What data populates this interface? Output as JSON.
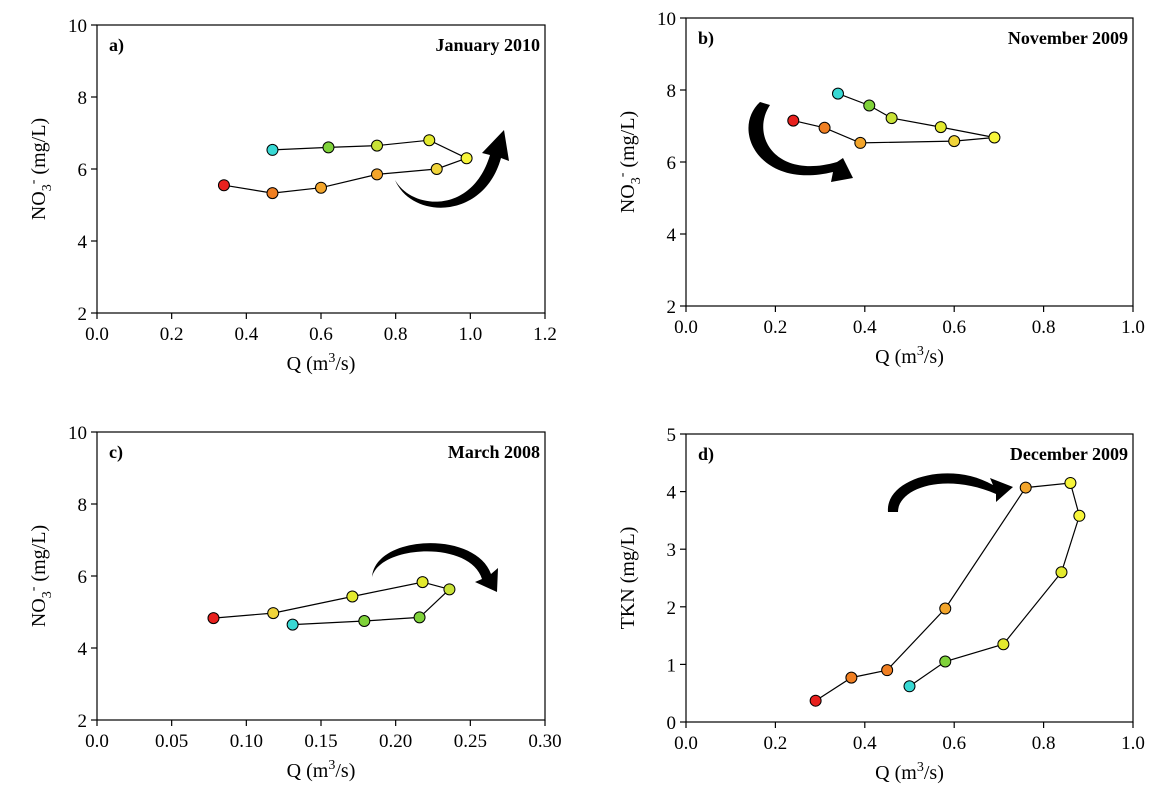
{
  "chart_data": [
    {
      "type": "line",
      "panel_label": "a)",
      "title": "January  2010",
      "xlabel": "Q (m³/s)",
      "ylabel": "NO₃⁻ (mg/L)",
      "xlim": [
        0.0,
        1.2
      ],
      "ylim": [
        2,
        10
      ],
      "xticks": [
        "0.0",
        "0.2",
        "0.4",
        "0.6",
        "0.8",
        "1.0",
        "1.2"
      ],
      "yticks": [
        "2",
        "4",
        "6",
        "8",
        "10"
      ],
      "arrow_direction": "clockwise",
      "points": [
        {
          "x": 0.34,
          "y": 5.55,
          "color": "#e8211e"
        },
        {
          "x": 0.47,
          "y": 5.33,
          "color": "#f07f22"
        },
        {
          "x": 0.6,
          "y": 5.48,
          "color": "#f3a52a"
        },
        {
          "x": 0.75,
          "y": 5.85,
          "color": "#f3a52a"
        },
        {
          "x": 0.91,
          "y": 6.0,
          "color": "#f0d43a"
        },
        {
          "x": 0.99,
          "y": 6.3,
          "color": "#f7f53a"
        },
        {
          "x": 0.89,
          "y": 6.8,
          "color": "#e3ea2e"
        },
        {
          "x": 0.75,
          "y": 6.65,
          "color": "#c8e237"
        },
        {
          "x": 0.62,
          "y": 6.6,
          "color": "#7fd23a"
        },
        {
          "x": 0.47,
          "y": 6.53,
          "color": "#38d9d4"
        }
      ]
    },
    {
      "type": "line",
      "panel_label": "b)",
      "title": "November 2009",
      "xlabel": "Q (m³/s)",
      "ylabel": "NO₃⁻ (mg/L)",
      "xlim": [
        0.0,
        1.0
      ],
      "ylim": [
        2,
        10
      ],
      "xticks": [
        "0.0",
        "0.2",
        "0.4",
        "0.6",
        "0.8",
        "1.0"
      ],
      "yticks": [
        "2",
        "4",
        "6",
        "8",
        "10"
      ],
      "arrow_direction": "counterclockwise",
      "points": [
        {
          "x": 0.24,
          "y": 7.15,
          "color": "#e8211e"
        },
        {
          "x": 0.31,
          "y": 6.95,
          "color": "#f07f22"
        },
        {
          "x": 0.39,
          "y": 6.53,
          "color": "#f3a52a"
        },
        {
          "x": 0.6,
          "y": 6.58,
          "color": "#f0d43a"
        },
        {
          "x": 0.69,
          "y": 6.68,
          "color": "#f7f53a"
        },
        {
          "x": 0.57,
          "y": 6.97,
          "color": "#e3ea2e"
        },
        {
          "x": 0.46,
          "y": 7.22,
          "color": "#c8e237"
        },
        {
          "x": 0.41,
          "y": 7.57,
          "color": "#7fd23a"
        },
        {
          "x": 0.34,
          "y": 7.9,
          "color": "#38d9d4"
        }
      ]
    },
    {
      "type": "line",
      "panel_label": "c)",
      "title": "March 2008",
      "xlabel": "Q (m³/s)",
      "ylabel": "NO₃⁻ (mg/L)",
      "xlim": [
        0.0,
        0.3
      ],
      "ylim": [
        2,
        10
      ],
      "xticks": [
        "0.0",
        "0.05",
        "0.10",
        "0.15",
        "0.20",
        "0.25",
        "0.30"
      ],
      "yticks": [
        "2",
        "4",
        "6",
        "8",
        "10"
      ],
      "arrow_direction": "clockwise",
      "points": [
        {
          "x": 0.078,
          "y": 4.83,
          "color": "#e8211e"
        },
        {
          "x": 0.118,
          "y": 4.97,
          "color": "#f0d43a"
        },
        {
          "x": 0.171,
          "y": 5.43,
          "color": "#e3ea2e"
        },
        {
          "x": 0.218,
          "y": 5.83,
          "color": "#e3ea2e"
        },
        {
          "x": 0.236,
          "y": 5.63,
          "color": "#c8e237"
        },
        {
          "x": 0.216,
          "y": 4.85,
          "color": "#7fd23a"
        },
        {
          "x": 0.179,
          "y": 4.75,
          "color": "#7fd23a"
        },
        {
          "x": 0.131,
          "y": 4.65,
          "color": "#38d9d4"
        }
      ]
    },
    {
      "type": "line",
      "panel_label": "d)",
      "title": "December 2009",
      "xlabel": "Q (m³/s)",
      "ylabel": "TKN (mg/L)",
      "xlim": [
        0.0,
        1.0
      ],
      "ylim": [
        0,
        5
      ],
      "xticks": [
        "0.0",
        "0.2",
        "0.4",
        "0.6",
        "0.8",
        "1.0"
      ],
      "yticks": [
        "0",
        "1",
        "2",
        "3",
        "4",
        "5"
      ],
      "arrow_direction": "clockwise",
      "points": [
        {
          "x": 0.29,
          "y": 0.37,
          "color": "#e8211e"
        },
        {
          "x": 0.37,
          "y": 0.77,
          "color": "#f07f22"
        },
        {
          "x": 0.45,
          "y": 0.9,
          "color": "#f07f22"
        },
        {
          "x": 0.58,
          "y": 1.97,
          "color": "#f3a52a"
        },
        {
          "x": 0.76,
          "y": 4.07,
          "color": "#f3a52a"
        },
        {
          "x": 0.86,
          "y": 4.15,
          "color": "#f7f53a"
        },
        {
          "x": 0.88,
          "y": 3.58,
          "color": "#f7f53a"
        },
        {
          "x": 0.84,
          "y": 2.6,
          "color": "#e3ea2e"
        },
        {
          "x": 0.71,
          "y": 1.35,
          "color": "#e3ea2e"
        },
        {
          "x": 0.58,
          "y": 1.05,
          "color": "#7fd23a"
        },
        {
          "x": 0.5,
          "y": 0.62,
          "color": "#38d9d4"
        }
      ]
    }
  ]
}
